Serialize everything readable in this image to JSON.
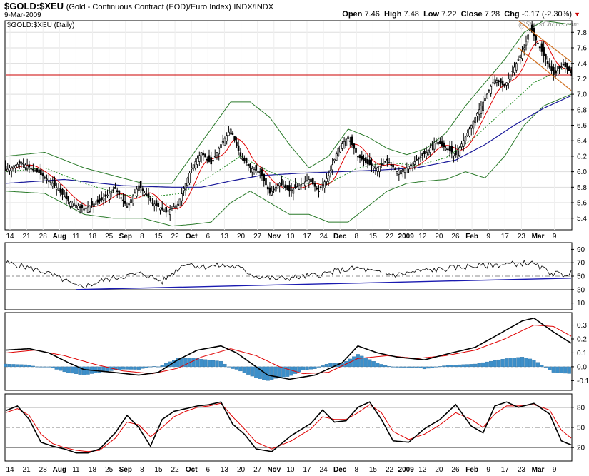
{
  "header": {
    "symbol": "$GOLD:$XEU",
    "description": "(Gold - Continuous Contract (EOD)/Euro Index)",
    "exchange": "INDX/INDX",
    "date": "9-Mar-2009",
    "open_label": "Open",
    "open": "7.46",
    "high_label": "High",
    "high": "7.48",
    "low_label": "Low",
    "low": "7.22",
    "close_label": "Close",
    "close": "7.28",
    "chg_label": "Chg",
    "chg": "-0.17 (-2.30%)",
    "watermark": "@StockCharts.com",
    "panel_label": "$GOLD:$XEU (Daily)"
  },
  "colors": {
    "up_candle": "#ffffff",
    "down_candle": "#000000",
    "bollinger": "#2a7a2a",
    "ma_short": "#e00000",
    "ma_dotted": "#228b22",
    "ma_long": "#1a1a9a",
    "resistance": "#cc0000",
    "channel": "#d07020",
    "histogram": "#3d8fc9"
  },
  "chart_data": [
    {
      "type": "candlestick",
      "title": "$GOLD:$XEU (Daily)",
      "ylim": [
        5.25,
        7.95
      ],
      "y_ticks": [
        "5.4",
        "5.6",
        "5.8",
        "6.0",
        "6.2",
        "6.4",
        "6.6",
        "6.8",
        "7.0",
        "7.2",
        "7.4",
        "7.6",
        "7.8"
      ],
      "x_tick_labels": [
        "14",
        "21",
        "28",
        "Aug",
        "11",
        "18",
        "25",
        "Sep",
        "8",
        "15",
        "22",
        "Oct",
        "6",
        "13",
        "20",
        "27",
        "Nov",
        "10",
        "17",
        "24",
        "Dec",
        "8",
        "15",
        "22",
        "2009",
        "12",
        "20",
        "26",
        "Feb",
        "9",
        "17",
        "23",
        "Mar",
        "9"
      ],
      "x_tick_bold": [
        "Aug",
        "Sep",
        "Oct",
        "Nov",
        "Dec",
        "2009",
        "Feb",
        "Mar"
      ],
      "resistance_level": 7.25,
      "close_anchors": [
        [
          0,
          6.02
        ],
        [
          8,
          6.12
        ],
        [
          16,
          6.0
        ],
        [
          24,
          5.85
        ],
        [
          32,
          5.62
        ],
        [
          40,
          5.52
        ],
        [
          48,
          5.62
        ],
        [
          56,
          5.78
        ],
        [
          62,
          5.55
        ],
        [
          68,
          5.82
        ],
        [
          75,
          5.6
        ],
        [
          82,
          5.48
        ],
        [
          88,
          5.58
        ],
        [
          95,
          6.05
        ],
        [
          100,
          6.25
        ],
        [
          105,
          6.1
        ],
        [
          110,
          6.35
        ],
        [
          115,
          6.55
        ],
        [
          120,
          6.2
        ],
        [
          125,
          6.05
        ],
        [
          130,
          6.0
        ],
        [
          135,
          5.72
        ],
        [
          140,
          5.85
        ],
        [
          145,
          5.75
        ],
        [
          150,
          5.82
        ],
        [
          155,
          5.9
        ],
        [
          160,
          5.75
        ],
        [
          165,
          5.95
        ],
        [
          170,
          6.3
        ],
        [
          175,
          6.45
        ],
        [
          180,
          6.2
        ],
        [
          185,
          6.1
        ],
        [
          190,
          6.05
        ],
        [
          195,
          6.15
        ],
        [
          200,
          6.0
        ],
        [
          205,
          6.05
        ],
        [
          210,
          6.15
        ],
        [
          215,
          6.25
        ],
        [
          220,
          6.4
        ],
        [
          225,
          6.3
        ],
        [
          230,
          6.22
        ],
        [
          235,
          6.45
        ],
        [
          240,
          6.7
        ],
        [
          245,
          6.95
        ],
        [
          250,
          7.2
        ],
        [
          255,
          7.1
        ],
        [
          260,
          7.35
        ],
        [
          265,
          7.6
        ],
        [
          268,
          7.85
        ],
        [
          272,
          7.65
        ],
        [
          276,
          7.45
        ],
        [
          280,
          7.25
        ],
        [
          285,
          7.38
        ],
        [
          289,
          7.28
        ]
      ],
      "bollinger_upper": [
        [
          0,
          6.2
        ],
        [
          20,
          6.25
        ],
        [
          40,
          6.05
        ],
        [
          55,
          5.95
        ],
        [
          70,
          5.85
        ],
        [
          85,
          5.85
        ],
        [
          95,
          6.2
        ],
        [
          105,
          6.55
        ],
        [
          115,
          6.9
        ],
        [
          125,
          6.9
        ],
        [
          135,
          6.7
        ],
        [
          145,
          6.35
        ],
        [
          155,
          6.05
        ],
        [
          165,
          6.2
        ],
        [
          175,
          6.55
        ],
        [
          185,
          6.45
        ],
        [
          195,
          6.3
        ],
        [
          205,
          6.22
        ],
        [
          215,
          6.3
        ],
        [
          225,
          6.5
        ],
        [
          235,
          6.85
        ],
        [
          245,
          7.15
        ],
        [
          255,
          7.45
        ],
        [
          265,
          7.8
        ],
        [
          275,
          7.95
        ],
        [
          289,
          7.9
        ]
      ],
      "bollinger_lower": [
        [
          0,
          5.75
        ],
        [
          20,
          5.72
        ],
        [
          40,
          5.45
        ],
        [
          55,
          5.4
        ],
        [
          70,
          5.4
        ],
        [
          85,
          5.3
        ],
        [
          95,
          5.32
        ],
        [
          105,
          5.35
        ],
        [
          115,
          5.6
        ],
        [
          125,
          5.75
        ],
        [
          135,
          5.6
        ],
        [
          145,
          5.45
        ],
        [
          155,
          5.45
        ],
        [
          165,
          5.35
        ],
        [
          175,
          5.35
        ],
        [
          185,
          5.55
        ],
        [
          195,
          5.75
        ],
        [
          205,
          5.85
        ],
        [
          215,
          5.88
        ],
        [
          225,
          5.9
        ],
        [
          235,
          6.0
        ],
        [
          245,
          5.92
        ],
        [
          255,
          6.2
        ],
        [
          265,
          6.6
        ],
        [
          275,
          6.85
        ],
        [
          289,
          7.0
        ]
      ],
      "ma_long": [
        [
          0,
          5.85
        ],
        [
          30,
          5.9
        ],
        [
          60,
          5.82
        ],
        [
          85,
          5.8
        ],
        [
          100,
          5.8
        ],
        [
          115,
          5.88
        ],
        [
          130,
          5.95
        ],
        [
          150,
          5.98
        ],
        [
          170,
          6.0
        ],
        [
          190,
          6.02
        ],
        [
          210,
          6.05
        ],
        [
          230,
          6.15
        ],
        [
          245,
          6.35
        ],
        [
          260,
          6.6
        ],
        [
          275,
          6.82
        ],
        [
          289,
          6.98
        ]
      ],
      "ma_dotted": [
        [
          0,
          6.0
        ],
        [
          20,
          6.05
        ],
        [
          40,
          5.85
        ],
        [
          60,
          5.7
        ],
        [
          75,
          5.68
        ],
        [
          90,
          5.72
        ],
        [
          105,
          5.95
        ],
        [
          120,
          6.2
        ],
        [
          135,
          6.0
        ],
        [
          150,
          5.85
        ],
        [
          165,
          5.85
        ],
        [
          180,
          6.05
        ],
        [
          195,
          6.12
        ],
        [
          210,
          6.08
        ],
        [
          225,
          6.18
        ],
        [
          240,
          6.45
        ],
        [
          255,
          6.8
        ],
        [
          270,
          7.15
        ],
        [
          289,
          7.38
        ]
      ],
      "channel": {
        "x0": 262,
        "x1": 289,
        "upper": [
          7.95,
          7.42
        ],
        "lower": [
          7.6,
          7.05
        ]
      }
    },
    {
      "type": "line",
      "title": "RSI",
      "ylim": [
        0,
        100
      ],
      "y_ticks": [
        "10",
        "30",
        "50",
        "70",
        "90"
      ],
      "reference_lines": [
        30,
        50,
        70
      ],
      "anchors": [
        [
          0,
          70
        ],
        [
          10,
          64
        ],
        [
          20,
          56
        ],
        [
          30,
          44
        ],
        [
          36,
          34
        ],
        [
          42,
          36
        ],
        [
          50,
          44
        ],
        [
          60,
          50
        ],
        [
          70,
          54
        ],
        [
          80,
          42
        ],
        [
          86,
          56
        ],
        [
          92,
          70
        ],
        [
          100,
          64
        ],
        [
          110,
          66
        ],
        [
          118,
          64
        ],
        [
          128,
          50
        ],
        [
          138,
          46
        ],
        [
          148,
          48
        ],
        [
          160,
          52
        ],
        [
          170,
          58
        ],
        [
          180,
          62
        ],
        [
          190,
          55
        ],
        [
          200,
          52
        ],
        [
          212,
          58
        ],
        [
          222,
          60
        ],
        [
          234,
          64
        ],
        [
          246,
          66
        ],
        [
          258,
          68
        ],
        [
          268,
          70
        ],
        [
          278,
          56
        ],
        [
          284,
          52
        ],
        [
          289,
          55
        ]
      ],
      "trendline": [
        [
          36,
          30
        ],
        [
          289,
          47
        ]
      ]
    },
    {
      "type": "line",
      "title": "MACD",
      "ylim": [
        -0.17,
        0.39
      ],
      "y_ticks": [
        "-0.1",
        "0.0",
        "0.1",
        "0.2",
        "0.3"
      ],
      "macd": [
        [
          0,
          0.12
        ],
        [
          12,
          0.13
        ],
        [
          22,
          0.1
        ],
        [
          32,
          0.03
        ],
        [
          40,
          -0.02
        ],
        [
          55,
          -0.04
        ],
        [
          68,
          -0.06
        ],
        [
          78,
          -0.04
        ],
        [
          88,
          0.05
        ],
        [
          98,
          0.12
        ],
        [
          110,
          0.15
        ],
        [
          118,
          0.1
        ],
        [
          126,
          0.02
        ],
        [
          134,
          -0.06
        ],
        [
          145,
          -0.09
        ],
        [
          158,
          -0.06
        ],
        [
          172,
          0.03
        ],
        [
          180,
          0.15
        ],
        [
          190,
          0.1
        ],
        [
          200,
          0.07
        ],
        [
          214,
          0.05
        ],
        [
          228,
          0.1
        ],
        [
          240,
          0.14
        ],
        [
          254,
          0.25
        ],
        [
          264,
          0.33
        ],
        [
          270,
          0.35
        ],
        [
          280,
          0.25
        ],
        [
          289,
          0.17
        ]
      ],
      "signal": [
        [
          0,
          0.1
        ],
        [
          15,
          0.12
        ],
        [
          30,
          0.08
        ],
        [
          45,
          0.02
        ],
        [
          60,
          -0.03
        ],
        [
          75,
          -0.05
        ],
        [
          88,
          -0.01
        ],
        [
          100,
          0.07
        ],
        [
          115,
          0.13
        ],
        [
          128,
          0.08
        ],
        [
          140,
          0.0
        ],
        [
          152,
          -0.05
        ],
        [
          165,
          -0.04
        ],
        [
          180,
          0.06
        ],
        [
          195,
          0.08
        ],
        [
          210,
          0.06
        ],
        [
          225,
          0.08
        ],
        [
          240,
          0.12
        ],
        [
          255,
          0.2
        ],
        [
          270,
          0.3
        ],
        [
          280,
          0.29
        ],
        [
          289,
          0.22
        ]
      ]
    },
    {
      "type": "line",
      "title": "Stochastic",
      "ylim": [
        0,
        100
      ],
      "y_ticks": [
        "20",
        "50",
        "80"
      ],
      "reference_lines": [
        20,
        50,
        80
      ],
      "k": [
        [
          0,
          75
        ],
        [
          6,
          82
        ],
        [
          12,
          62
        ],
        [
          18,
          28
        ],
        [
          24,
          22
        ],
        [
          30,
          18
        ],
        [
          36,
          12
        ],
        [
          42,
          12
        ],
        [
          48,
          18
        ],
        [
          56,
          42
        ],
        [
          62,
          68
        ],
        [
          68,
          50
        ],
        [
          74,
          22
        ],
        [
          80,
          62
        ],
        [
          86,
          74
        ],
        [
          92,
          78
        ],
        [
          98,
          82
        ],
        [
          104,
          84
        ],
        [
          110,
          88
        ],
        [
          116,
          55
        ],
        [
          122,
          40
        ],
        [
          128,
          18
        ],
        [
          136,
          14
        ],
        [
          146,
          38
        ],
        [
          156,
          56
        ],
        [
          162,
          76
        ],
        [
          168,
          58
        ],
        [
          174,
          60
        ],
        [
          180,
          80
        ],
        [
          186,
          88
        ],
        [
          192,
          62
        ],
        [
          198,
          30
        ],
        [
          206,
          28
        ],
        [
          214,
          48
        ],
        [
          222,
          62
        ],
        [
          230,
          84
        ],
        [
          238,
          52
        ],
        [
          244,
          42
        ],
        [
          250,
          82
        ],
        [
          256,
          88
        ],
        [
          262,
          80
        ],
        [
          270,
          86
        ],
        [
          278,
          70
        ],
        [
          284,
          30
        ],
        [
          289,
          24
        ]
      ],
      "d": [
        [
          0,
          72
        ],
        [
          6,
          78
        ],
        [
          12,
          68
        ],
        [
          18,
          40
        ],
        [
          24,
          26
        ],
        [
          30,
          20
        ],
        [
          36,
          16
        ],
        [
          42,
          14
        ],
        [
          48,
          16
        ],
        [
          56,
          34
        ],
        [
          62,
          58
        ],
        [
          68,
          54
        ],
        [
          74,
          36
        ],
        [
          80,
          50
        ],
        [
          86,
          66
        ],
        [
          92,
          74
        ],
        [
          98,
          80
        ],
        [
          104,
          82
        ],
        [
          110,
          86
        ],
        [
          116,
          66
        ],
        [
          122,
          48
        ],
        [
          128,
          28
        ],
        [
          136,
          18
        ],
        [
          146,
          30
        ],
        [
          156,
          48
        ],
        [
          162,
          66
        ],
        [
          168,
          62
        ],
        [
          174,
          62
        ],
        [
          180,
          72
        ],
        [
          186,
          84
        ],
        [
          192,
          72
        ],
        [
          198,
          44
        ],
        [
          206,
          32
        ],
        [
          214,
          40
        ],
        [
          222,
          54
        ],
        [
          230,
          72
        ],
        [
          238,
          62
        ],
        [
          244,
          50
        ],
        [
          250,
          70
        ],
        [
          256,
          82
        ],
        [
          262,
          82
        ],
        [
          270,
          84
        ],
        [
          278,
          76
        ],
        [
          284,
          46
        ],
        [
          289,
          34
        ]
      ]
    }
  ]
}
